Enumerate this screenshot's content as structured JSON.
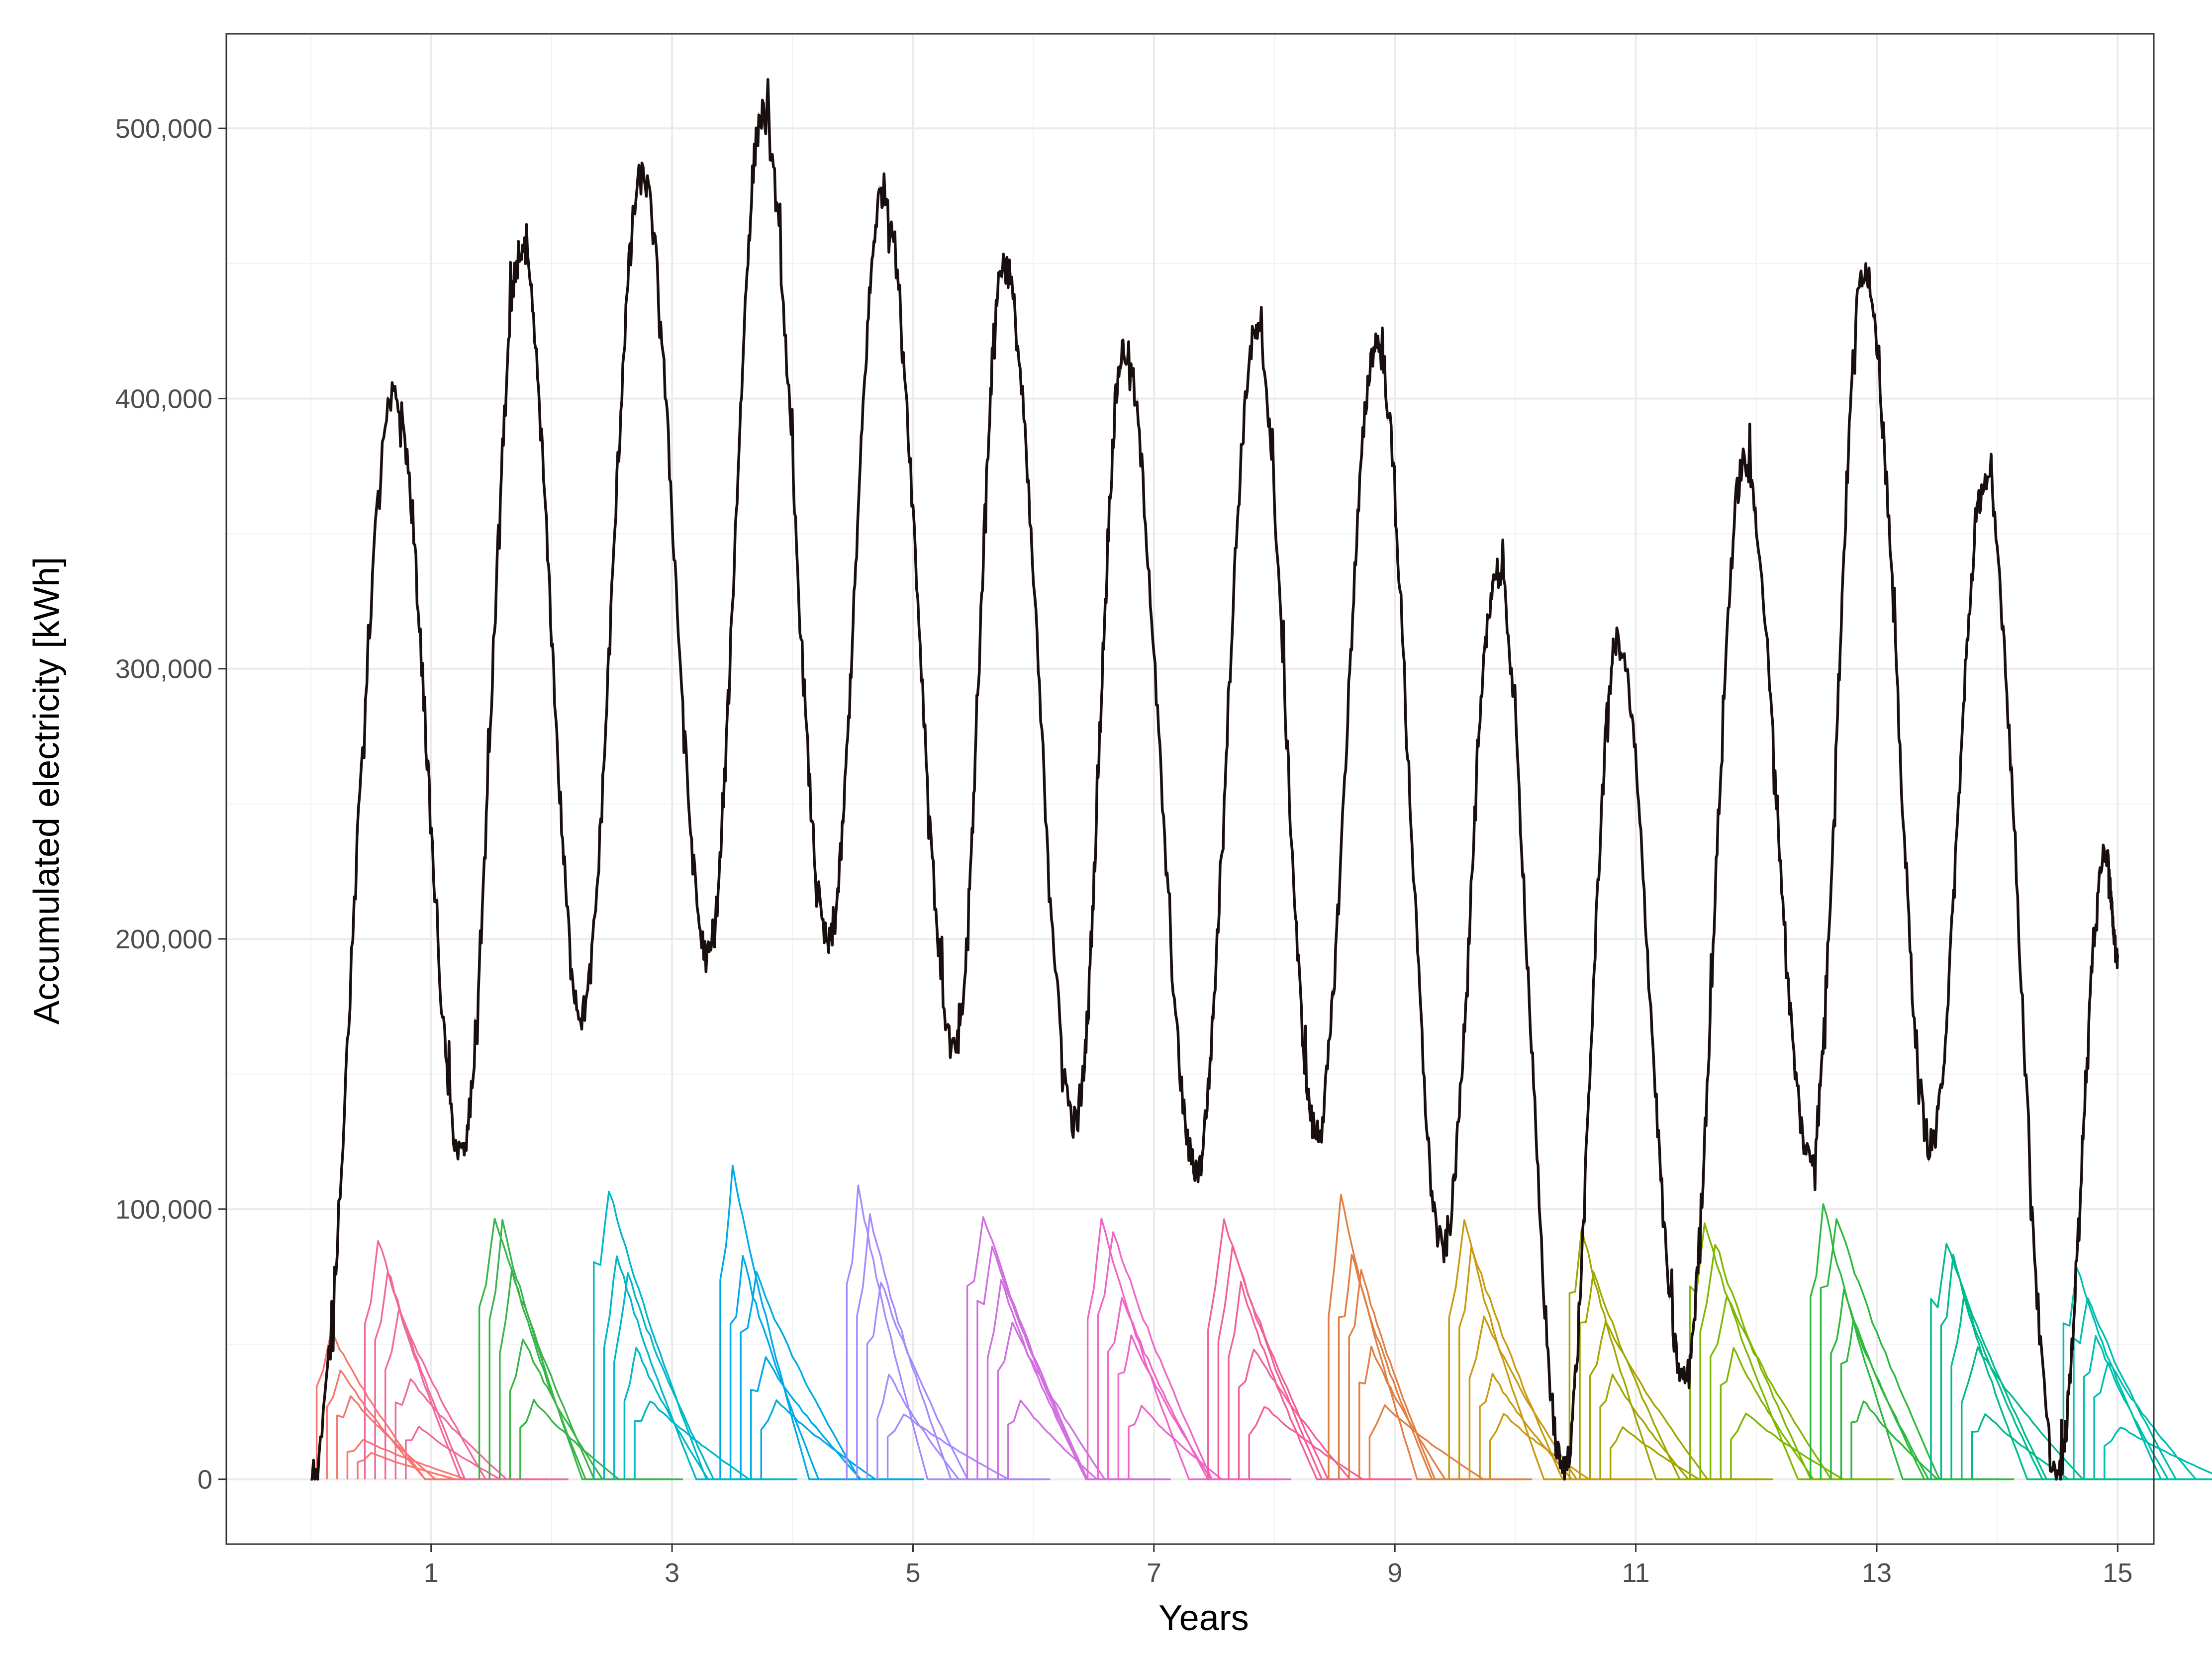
{
  "chart_data": {
    "type": "line",
    "title": "",
    "xlabel": "Years",
    "ylabel": "Accumulated electricity [kWh]",
    "xlim": [
      -0.7,
      15.3
    ],
    "ylim": [
      -24000,
      535000
    ],
    "x_ticks": [
      1,
      3,
      5,
      7,
      9,
      11,
      13,
      15
    ],
    "x_tick_labels": [
      "1",
      "3",
      "5",
      "7",
      "9",
      "11",
      "13",
      "15"
    ],
    "y_ticks": [
      0,
      100000,
      200000,
      300000,
      400000,
      500000
    ],
    "y_tick_labels": [
      "0",
      "100,000",
      "200,000",
      "300,000",
      "400,000",
      "500,000"
    ],
    "grid": true,
    "legend": "none",
    "total_series": {
      "name": "Total",
      "color": "#1a0f0f",
      "start_x": 0.0,
      "peaks": [
        {
          "x": 0.7,
          "y": 400000
        },
        {
          "x": 1.75,
          "y": 455000
        },
        {
          "x": 2.75,
          "y": 482000
        },
        {
          "x": 3.75,
          "y": 505000
        },
        {
          "x": 4.75,
          "y": 477000
        },
        {
          "x": 5.75,
          "y": 450000
        },
        {
          "x": 6.75,
          "y": 418000
        },
        {
          "x": 7.85,
          "y": 424000
        },
        {
          "x": 8.85,
          "y": 421000
        },
        {
          "x": 9.85,
          "y": 336000
        },
        {
          "x": 10.85,
          "y": 310000
        },
        {
          "x": 11.9,
          "y": 376000
        },
        {
          "x": 12.9,
          "y": 449000
        },
        {
          "x": 13.9,
          "y": 369000
        },
        {
          "x": 14.9,
          "y": 232000
        }
      ],
      "troughs": [
        {
          "x": 1.25,
          "y": 120000
        },
        {
          "x": 2.25,
          "y": 172000
        },
        {
          "x": 3.3,
          "y": 193000
        },
        {
          "x": 4.3,
          "y": 198000
        },
        {
          "x": 5.35,
          "y": 158000
        },
        {
          "x": 6.35,
          "y": 132000
        },
        {
          "x": 7.35,
          "y": 115000
        },
        {
          "x": 8.35,
          "y": 128000
        },
        {
          "x": 9.4,
          "y": 85000
        },
        {
          "x": 10.4,
          "y": 3000
        },
        {
          "x": 11.4,
          "y": 37000
        },
        {
          "x": 12.45,
          "y": 119000
        },
        {
          "x": 13.45,
          "y": 124000
        },
        {
          "x": 14.5,
          "y": 1000
        }
      ],
      "end": {
        "x": 15.0,
        "y": 193000
      }
    },
    "component_groups": [
      {
        "start": 0.05,
        "color": "#f8766d",
        "maxima": [
          56000,
          42000,
          32000,
          15000,
          10000
        ]
      },
      {
        "start": 0.45,
        "color": "#f06a9e",
        "maxima": [
          92000,
          80000,
          65000,
          38000,
          20000
        ]
      },
      {
        "start": 1.4,
        "color": "#3bb44a",
        "maxima": [
          100000,
          98000,
          80000,
          54000,
          30000
        ]
      },
      {
        "start": 2.35,
        "color": "#00b8c8",
        "maxima": [
          111000,
          86000,
          78000,
          50000,
          30000
        ]
      },
      {
        "start": 3.4,
        "color": "#00a9e8",
        "maxima": [
          119000,
          84000,
          78000,
          46000,
          30000
        ]
      },
      {
        "start": 4.45,
        "color": "#a58aff",
        "maxima": [
          112000,
          100000,
          75000,
          40000,
          25000
        ]
      },
      {
        "start": 5.45,
        "color": "#d16fe0",
        "maxima": [
          101000,
          90000,
          75000,
          60000,
          30000
        ]
      },
      {
        "start": 6.45,
        "color": "#f066c8",
        "maxima": [
          99000,
          95000,
          70000,
          55000,
          28000
        ]
      },
      {
        "start": 7.45,
        "color": "#f45f98",
        "maxima": [
          98000,
          90000,
          75000,
          50000,
          28000
        ]
      },
      {
        "start": 8.45,
        "color": "#e17f45",
        "maxima": [
          108000,
          85000,
          80000,
          50000,
          28000
        ]
      },
      {
        "start": 9.45,
        "color": "#c99b12",
        "maxima": [
          98000,
          88000,
          62000,
          40000,
          25000
        ]
      },
      {
        "start": 10.45,
        "color": "#a3a500",
        "maxima": [
          96000,
          80000,
          60000,
          40000,
          20000
        ]
      },
      {
        "start": 11.45,
        "color": "#7fb800",
        "maxima": [
          97000,
          90000,
          70000,
          50000,
          25000
        ]
      },
      {
        "start": 12.45,
        "color": "#2eb83f",
        "maxima": [
          105000,
          100000,
          72000,
          60000,
          30000
        ]
      },
      {
        "start": 13.45,
        "color": "#00bb8e",
        "maxima": [
          90000,
          85000,
          70000,
          50000,
          25000
        ]
      },
      {
        "start": 14.55,
        "color": "#00bfae",
        "maxima": [
          80000,
          70000,
          55000,
          45000,
          20000
        ]
      }
    ]
  }
}
